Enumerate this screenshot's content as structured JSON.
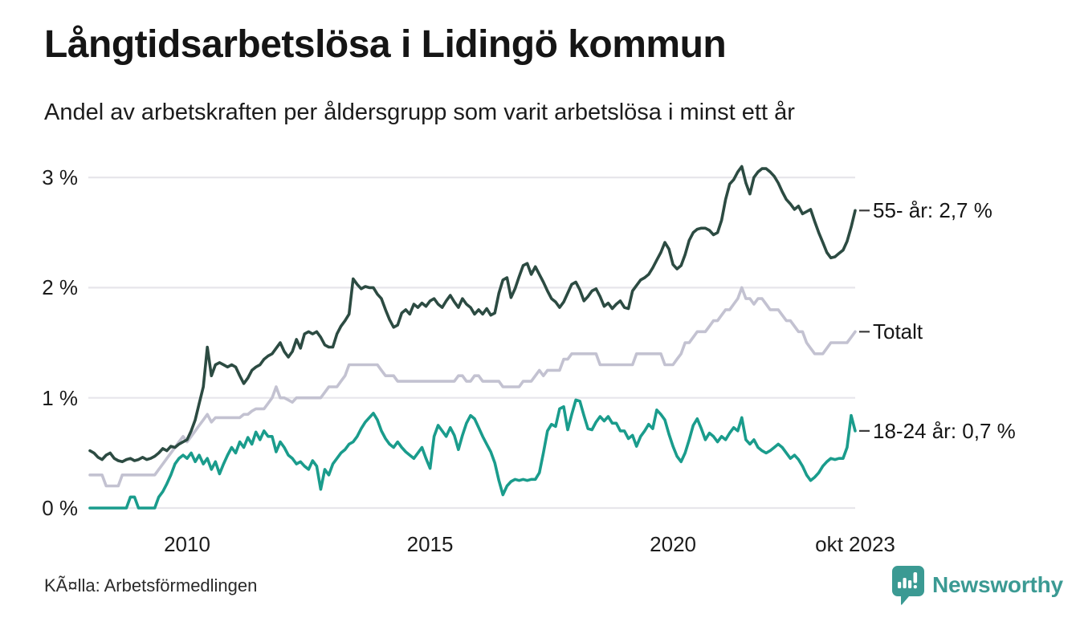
{
  "header": {
    "title": "Långtidsarbetslösa i Lidingö kommun",
    "subtitle": "Andel av arbetskraften per åldersgrupp som varit arbetslösa i minst ett år"
  },
  "footer": {
    "source": "KÃ¤lla: Arbetsförmedlingen",
    "brand": "Newsworthy"
  },
  "colors": {
    "series_55": "#2c4b42",
    "series_total": "#c3c2d1",
    "series_18_24": "#1a9c8c",
    "grid": "#e7e6eb",
    "label_tick": "#3c3c3c",
    "text": "#1c1c1c",
    "brand_teal": "#3b9a93"
  },
  "chart_data": {
    "type": "line",
    "title": "Långtidsarbetslösa i Lidingö kommun",
    "subtitle": "Andel av arbetskraften per åldersgrupp som varit arbetslösa i minst ett år",
    "xlabel": "",
    "ylabel": "",
    "x_start": "2008-01",
    "x_end": "2023-10",
    "freq": "monthly",
    "grid": "horizontal",
    "legend_position": "right-of-line-ends",
    "ylim": [
      0,
      3.3
    ],
    "y_ticks": [
      3,
      2,
      1,
      0
    ],
    "y_tick_labels": [
      "3 %",
      "2 %",
      "1 %",
      "0 %"
    ],
    "x_tick_indices": [
      24,
      84,
      144,
      189
    ],
    "x_tick_labels": [
      "2010",
      "2015",
      "2020",
      "okt 2023"
    ],
    "series": [
      {
        "name": "55- år",
        "label": "55- år: 2,7 %",
        "last_value_text": "2,7 %",
        "color": "#2c4b42",
        "values": [
          0.52,
          0.5,
          0.46,
          0.44,
          0.48,
          0.5,
          0.45,
          0.43,
          0.42,
          0.44,
          0.45,
          0.43,
          0.44,
          0.46,
          0.44,
          0.45,
          0.47,
          0.5,
          0.54,
          0.52,
          0.56,
          0.55,
          0.58,
          0.6,
          0.62,
          0.7,
          0.8,
          0.95,
          1.1,
          1.46,
          1.2,
          1.3,
          1.32,
          1.3,
          1.28,
          1.3,
          1.28,
          1.2,
          1.13,
          1.18,
          1.25,
          1.28,
          1.3,
          1.35,
          1.38,
          1.4,
          1.45,
          1.5,
          1.42,
          1.37,
          1.42,
          1.53,
          1.45,
          1.58,
          1.6,
          1.58,
          1.6,
          1.55,
          1.48,
          1.46,
          1.46,
          1.58,
          1.65,
          1.7,
          1.76,
          2.08,
          2.03,
          1.99,
          2.01,
          2.0,
          2.0,
          1.94,
          1.9,
          1.8,
          1.71,
          1.64,
          1.66,
          1.77,
          1.8,
          1.76,
          1.85,
          1.82,
          1.86,
          1.83,
          1.88,
          1.9,
          1.85,
          1.82,
          1.88,
          1.93,
          1.87,
          1.82,
          1.9,
          1.85,
          1.82,
          1.76,
          1.8,
          1.76,
          1.81,
          1.75,
          1.77,
          1.95,
          2.07,
          2.09,
          1.91,
          1.99,
          2.1,
          2.2,
          2.22,
          2.12,
          2.19,
          2.12,
          2.05,
          1.97,
          1.9,
          1.87,
          1.82,
          1.87,
          1.95,
          2.03,
          2.05,
          1.98,
          1.88,
          1.92,
          1.97,
          1.99,
          1.92,
          1.83,
          1.86,
          1.81,
          1.85,
          1.88,
          1.82,
          1.81,
          1.97,
          2.02,
          2.07,
          2.09,
          2.12,
          2.18,
          2.25,
          2.32,
          2.41,
          2.35,
          2.21,
          2.17,
          2.2,
          2.3,
          2.43,
          2.5,
          2.53,
          2.54,
          2.54,
          2.52,
          2.48,
          2.5,
          2.61,
          2.8,
          2.94,
          2.98,
          3.05,
          3.1,
          2.95,
          2.85,
          3.0,
          3.05,
          3.08,
          3.08,
          3.05,
          3.01,
          2.95,
          2.87,
          2.8,
          2.76,
          2.71,
          2.74,
          2.67,
          2.69,
          2.71,
          2.6,
          2.5,
          2.41,
          2.32,
          2.27,
          2.28,
          2.31,
          2.34,
          2.42,
          2.55,
          2.7
        ]
      },
      {
        "name": "Totalt",
        "label": "Totalt",
        "last_value_text": "",
        "color": "#c3c2d1",
        "values": [
          0.3,
          0.3,
          0.3,
          0.3,
          0.2,
          0.2,
          0.2,
          0.2,
          0.3,
          0.3,
          0.3,
          0.3,
          0.3,
          0.3,
          0.3,
          0.3,
          0.3,
          0.35,
          0.4,
          0.45,
          0.5,
          0.55,
          0.6,
          0.65,
          0.6,
          0.65,
          0.7,
          0.75,
          0.8,
          0.85,
          0.78,
          0.82,
          0.82,
          0.82,
          0.82,
          0.82,
          0.82,
          0.82,
          0.85,
          0.85,
          0.88,
          0.9,
          0.9,
          0.9,
          0.95,
          1.0,
          1.1,
          1.0,
          1.0,
          0.98,
          0.96,
          1.0,
          1.0,
          1.0,
          1.0,
          1.0,
          1.0,
          1.0,
          1.05,
          1.1,
          1.1,
          1.1,
          1.15,
          1.2,
          1.3,
          1.3,
          1.3,
          1.3,
          1.3,
          1.3,
          1.3,
          1.3,
          1.25,
          1.2,
          1.2,
          1.2,
          1.15,
          1.15,
          1.15,
          1.15,
          1.15,
          1.15,
          1.15,
          1.15,
          1.15,
          1.15,
          1.15,
          1.15,
          1.15,
          1.15,
          1.15,
          1.2,
          1.2,
          1.15,
          1.15,
          1.2,
          1.2,
          1.15,
          1.15,
          1.15,
          1.15,
          1.15,
          1.1,
          1.1,
          1.1,
          1.1,
          1.1,
          1.15,
          1.15,
          1.15,
          1.2,
          1.25,
          1.2,
          1.25,
          1.25,
          1.25,
          1.25,
          1.35,
          1.35,
          1.4,
          1.4,
          1.4,
          1.4,
          1.4,
          1.4,
          1.4,
          1.3,
          1.3,
          1.3,
          1.3,
          1.3,
          1.3,
          1.3,
          1.3,
          1.3,
          1.4,
          1.4,
          1.4,
          1.4,
          1.4,
          1.4,
          1.4,
          1.3,
          1.3,
          1.3,
          1.35,
          1.4,
          1.5,
          1.5,
          1.55,
          1.6,
          1.6,
          1.6,
          1.65,
          1.7,
          1.7,
          1.75,
          1.8,
          1.8,
          1.85,
          1.9,
          2.0,
          1.9,
          1.9,
          1.85,
          1.9,
          1.9,
          1.85,
          1.8,
          1.8,
          1.8,
          1.75,
          1.7,
          1.7,
          1.65,
          1.6,
          1.6,
          1.5,
          1.45,
          1.4,
          1.4,
          1.4,
          1.45,
          1.5,
          1.5,
          1.5,
          1.5,
          1.5,
          1.55,
          1.6
        ]
      },
      {
        "name": "18-24 år",
        "label": "18-24 år: 0,7 %",
        "last_value_text": "0,7 %",
        "color": "#1a9c8c",
        "values": [
          0.0,
          0.0,
          0.0,
          0.0,
          0.0,
          0.0,
          0.0,
          0.0,
          0.0,
          0.0,
          0.1,
          0.1,
          0.0,
          0.0,
          0.0,
          0.0,
          0.0,
          0.1,
          0.15,
          0.22,
          0.3,
          0.4,
          0.45,
          0.48,
          0.45,
          0.5,
          0.42,
          0.48,
          0.4,
          0.45,
          0.35,
          0.42,
          0.31,
          0.4,
          0.48,
          0.55,
          0.5,
          0.6,
          0.55,
          0.64,
          0.58,
          0.69,
          0.62,
          0.7,
          0.65,
          0.65,
          0.51,
          0.6,
          0.55,
          0.48,
          0.45,
          0.4,
          0.42,
          0.38,
          0.35,
          0.43,
          0.38,
          0.17,
          0.35,
          0.3,
          0.4,
          0.45,
          0.5,
          0.53,
          0.58,
          0.6,
          0.65,
          0.72,
          0.78,
          0.82,
          0.86,
          0.8,
          0.7,
          0.63,
          0.58,
          0.55,
          0.6,
          0.55,
          0.51,
          0.48,
          0.45,
          0.5,
          0.55,
          0.45,
          0.36,
          0.65,
          0.75,
          0.7,
          0.65,
          0.73,
          0.66,
          0.53,
          0.66,
          0.77,
          0.84,
          0.81,
          0.73,
          0.65,
          0.58,
          0.51,
          0.41,
          0.25,
          0.12,
          0.2,
          0.24,
          0.26,
          0.25,
          0.26,
          0.25,
          0.26,
          0.26,
          0.32,
          0.5,
          0.7,
          0.76,
          0.74,
          0.9,
          0.92,
          0.71,
          0.85,
          0.98,
          0.97,
          0.84,
          0.72,
          0.71,
          0.78,
          0.83,
          0.79,
          0.83,
          0.77,
          0.77,
          0.7,
          0.7,
          0.63,
          0.66,
          0.56,
          0.65,
          0.7,
          0.76,
          0.72,
          0.89,
          0.85,
          0.8,
          0.67,
          0.56,
          0.47,
          0.42,
          0.5,
          0.62,
          0.75,
          0.81,
          0.72,
          0.62,
          0.68,
          0.65,
          0.6,
          0.65,
          0.62,
          0.68,
          0.73,
          0.7,
          0.82,
          0.62,
          0.58,
          0.62,
          0.55,
          0.52,
          0.5,
          0.52,
          0.55,
          0.58,
          0.55,
          0.5,
          0.45,
          0.48,
          0.44,
          0.38,
          0.3,
          0.25,
          0.28,
          0.32,
          0.38,
          0.42,
          0.45,
          0.44,
          0.45,
          0.45,
          0.55,
          0.84,
          0.7
        ]
      }
    ]
  }
}
